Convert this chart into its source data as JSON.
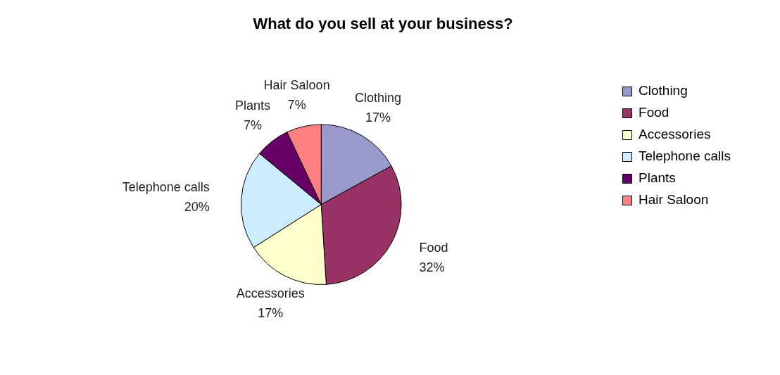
{
  "chart_data": {
    "type": "pie",
    "title": "What do you sell at your business?",
    "categories": [
      "Clothing",
      "Food",
      "Accessories",
      "Telephone calls",
      "Plants",
      "Hair Saloon"
    ],
    "values": [
      17,
      32,
      17,
      20,
      7,
      7
    ],
    "value_labels": [
      "17%",
      "32%",
      "17%",
      "20%",
      "7%",
      "7%"
    ],
    "colors": [
      "#9999cc",
      "#993366",
      "#ffffcc",
      "#ccecff",
      "#660066",
      "#ff8080"
    ],
    "legend": "right"
  }
}
